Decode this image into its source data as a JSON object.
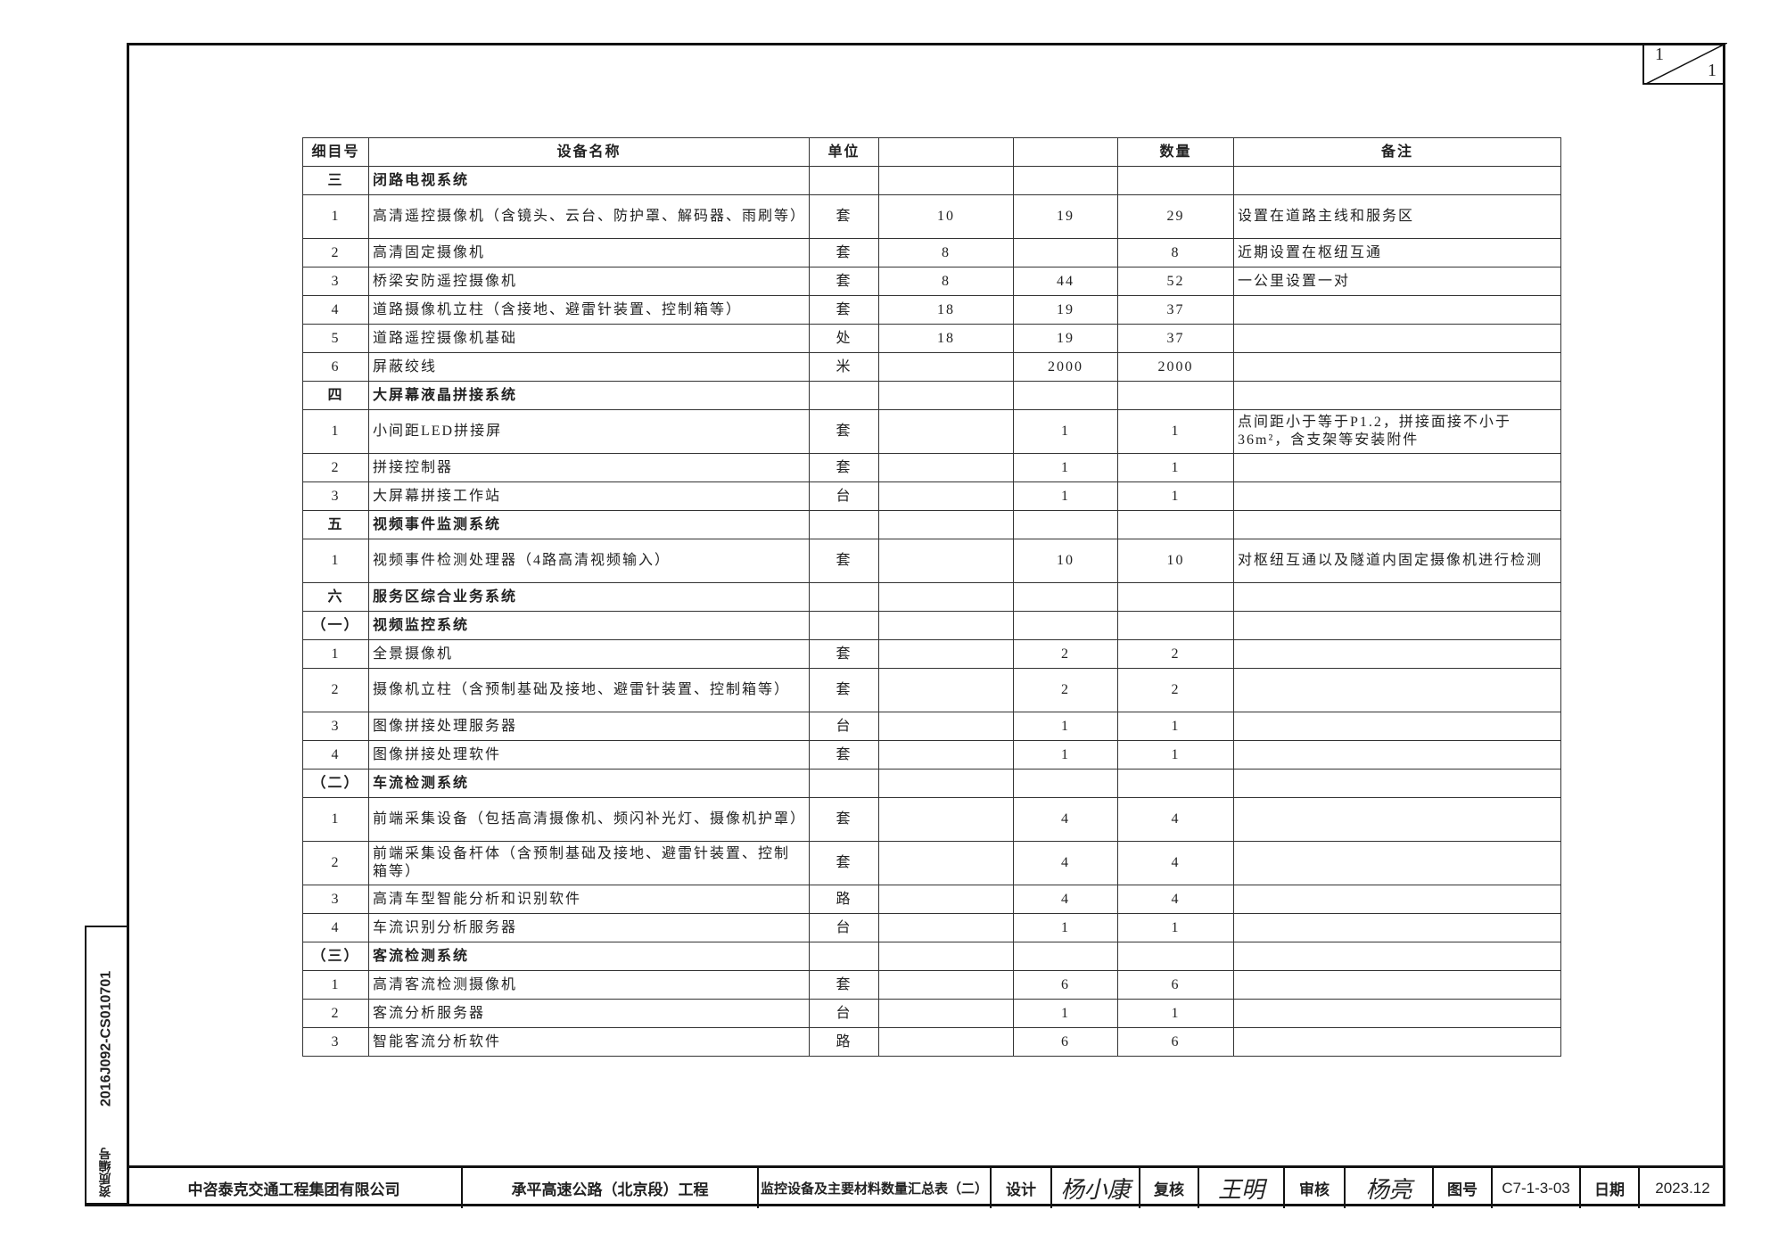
{
  "page_number": {
    "current": "1",
    "total": "1"
  },
  "table": {
    "headers": [
      "细目号",
      "设备名称",
      "单位",
      "",
      "",
      "数量",
      "备注"
    ],
    "rows": [
      {
        "type": "section",
        "no": "三",
        "name": "闭路电视系统"
      },
      {
        "type": "item",
        "no": "1",
        "name": "高清遥控摄像机（含镜头、云台、防护罩、解码器、雨刷等）",
        "unit": "套",
        "q1": "10",
        "q2": "19",
        "total": "29",
        "note": "设置在道路主线和服务区",
        "tall": true
      },
      {
        "type": "item",
        "no": "2",
        "name": "高清固定摄像机",
        "unit": "套",
        "q1": "8",
        "q2": "",
        "total": "8",
        "note": "近期设置在枢纽互通"
      },
      {
        "type": "item",
        "no": "3",
        "name": "桥梁安防遥控摄像机",
        "unit": "套",
        "q1": "8",
        "q2": "44",
        "total": "52",
        "note": "一公里设置一对"
      },
      {
        "type": "item",
        "no": "4",
        "name": "道路摄像机立柱（含接地、避雷针装置、控制箱等）",
        "unit": "套",
        "q1": "18",
        "q2": "19",
        "total": "37",
        "note": ""
      },
      {
        "type": "item",
        "no": "5",
        "name": "道路遥控摄像机基础",
        "unit": "处",
        "q1": "18",
        "q2": "19",
        "total": "37",
        "note": ""
      },
      {
        "type": "item",
        "no": "6",
        "name": "屏蔽绞线",
        "unit": "米",
        "q1": "",
        "q2": "2000",
        "total": "2000",
        "note": ""
      },
      {
        "type": "section",
        "no": "四",
        "name": "大屏幕液晶拼接系统"
      },
      {
        "type": "item",
        "no": "1",
        "name": "小间距LED拼接屏",
        "unit": "套",
        "q1": "",
        "q2": "1",
        "total": "1",
        "note": "点间距小于等于P1.2，拼接面接不小于36m²，含支架等安装附件",
        "tall": true
      },
      {
        "type": "item",
        "no": "2",
        "name": "拼接控制器",
        "unit": "套",
        "q1": "",
        "q2": "1",
        "total": "1",
        "note": ""
      },
      {
        "type": "item",
        "no": "3",
        "name": "大屏幕拼接工作站",
        "unit": "台",
        "q1": "",
        "q2": "1",
        "total": "1",
        "note": ""
      },
      {
        "type": "section",
        "no": "五",
        "name": "视频事件监测系统"
      },
      {
        "type": "item",
        "no": "1",
        "name": "视频事件检测处理器（4路高清视频输入）",
        "unit": "套",
        "q1": "",
        "q2": "10",
        "total": "10",
        "note": "对枢纽互通以及隧道内固定摄像机进行检测",
        "tall": true
      },
      {
        "type": "section",
        "no": "六",
        "name": "服务区综合业务系统"
      },
      {
        "type": "section",
        "no": "（一）",
        "name": "视频监控系统"
      },
      {
        "type": "item",
        "no": "1",
        "name": "全景摄像机",
        "unit": "套",
        "q1": "",
        "q2": "2",
        "total": "2",
        "note": ""
      },
      {
        "type": "item",
        "no": "2",
        "name": "摄像机立柱（含预制基础及接地、避雷针装置、控制箱等）",
        "unit": "套",
        "q1": "",
        "q2": "2",
        "total": "2",
        "note": "",
        "tall": true
      },
      {
        "type": "item",
        "no": "3",
        "name": "图像拼接处理服务器",
        "unit": "台",
        "q1": "",
        "q2": "1",
        "total": "1",
        "note": ""
      },
      {
        "type": "item",
        "no": "4",
        "name": "图像拼接处理软件",
        "unit": "套",
        "q1": "",
        "q2": "1",
        "total": "1",
        "note": ""
      },
      {
        "type": "section",
        "no": "（二）",
        "name": "车流检测系统"
      },
      {
        "type": "item",
        "no": "1",
        "name": "前端采集设备（包括高清摄像机、频闪补光灯、摄像机护罩）",
        "unit": "套",
        "q1": "",
        "q2": "4",
        "total": "4",
        "note": "",
        "tall": true
      },
      {
        "type": "item",
        "no": "2",
        "name": "前端采集设备杆体（含预制基础及接地、避雷针装置、控制箱等）",
        "unit": "套",
        "q1": "",
        "q2": "4",
        "total": "4",
        "note": "",
        "tall": true
      },
      {
        "type": "item",
        "no": "3",
        "name": "高清车型智能分析和识别软件",
        "unit": "路",
        "q1": "",
        "q2": "4",
        "total": "4",
        "note": ""
      },
      {
        "type": "item",
        "no": "4",
        "name": "车流识别分析服务器",
        "unit": "台",
        "q1": "",
        "q2": "1",
        "total": "1",
        "note": ""
      },
      {
        "type": "section",
        "no": "（三）",
        "name": "客流检测系统"
      },
      {
        "type": "item",
        "no": "1",
        "name": "高清客流检测摄像机",
        "unit": "套",
        "q1": "",
        "q2": "6",
        "total": "6",
        "note": ""
      },
      {
        "type": "item",
        "no": "2",
        "name": "客流分析服务器",
        "unit": "台",
        "q1": "",
        "q2": "1",
        "total": "1",
        "note": ""
      },
      {
        "type": "item",
        "no": "3",
        "name": "智能客流分析软件",
        "unit": "路",
        "q1": "",
        "q2": "6",
        "total": "6",
        "note": ""
      }
    ]
  },
  "side_strip": {
    "code": "2016J092-CS010701",
    "label": "资质编号"
  },
  "title_block": {
    "company": "中咨泰克交通工程集团有限公司",
    "project": "承平高速公路（北京段）工程",
    "drawing_title": "监控设备及主要材料数量汇总表（二）",
    "design_label": "设计",
    "design_signature": "杨小康",
    "review_label": "复核",
    "review_signature": "王明",
    "approve_label": "审核",
    "approve_signature": "杨亮",
    "drawing_no_label": "图号",
    "drawing_no": "C7-1-3-03",
    "date_label": "日期",
    "date": "2023.12"
  }
}
